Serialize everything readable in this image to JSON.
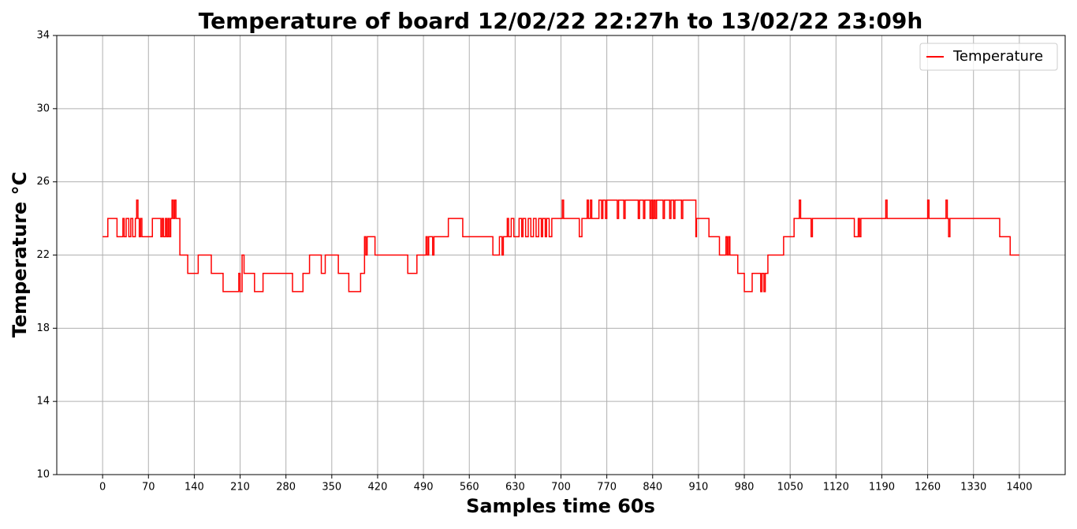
{
  "chart_data": {
    "type": "line",
    "line_shape": "step",
    "title": "Temperature of board 12/02/22 22:27h to 13/02/22 23:09h",
    "xlabel": "Samples time 60s",
    "ylabel": "Temperature °C",
    "label_color": "#1f77b4",
    "grid": true,
    "legend": "upper right",
    "xlim": [
      -70,
      1470
    ],
    "ylim": [
      10,
      34
    ],
    "xticks": [
      0,
      70,
      140,
      210,
      280,
      350,
      420,
      490,
      560,
      630,
      700,
      770,
      840,
      910,
      980,
      1050,
      1120,
      1190,
      1260,
      1330,
      1400
    ],
    "yticks": [
      10,
      14,
      18,
      22,
      26,
      30,
      34
    ],
    "series": [
      {
        "name": "Temperature",
        "color": "#ff0000",
        "x": [
          0,
          8,
          22,
          31,
          33,
          36,
          40,
          43,
          46,
          50,
          52,
          54,
          56,
          58,
          60,
          76,
          89,
          91,
          93,
          96,
          98,
          100,
          102,
          104,
          106,
          108,
          110,
          112,
          118,
          130,
          146,
          166,
          184,
          208,
          210,
          213,
          216,
          232,
          245,
          290,
          306,
          316,
          334,
          340,
          360,
          376,
          394,
          400,
          402,
          404,
          416,
          466,
          480,
          494,
          496,
          498,
          504,
          506,
          528,
          550,
          596,
          606,
          610,
          612,
          618,
          620,
          624,
          628,
          636,
          640,
          642,
          646,
          650,
          654,
          658,
          662,
          666,
          670,
          672,
          676,
          678,
          682,
          686,
          702,
          704,
          728,
          732,
          740,
          742,
          745,
          747,
          758,
          762,
          764,
          768,
          770,
          786,
          788,
          796,
          798,
          818,
          820,
          826,
          828,
          836,
          838,
          840,
          842,
          844,
          846,
          856,
          858,
          866,
          868,
          872,
          874,
          884,
          886,
          906,
          907,
          926,
          942,
          952,
          954,
          956,
          958,
          970,
          980,
          992,
          1005,
          1007,
          1010,
          1012,
          1016,
          1040,
          1056,
          1064,
          1066,
          1082,
          1084,
          1148,
          1154,
          1156,
          1158,
          1196,
          1198,
          1260,
          1262,
          1288,
          1290,
          1292,
          1294,
          1370,
          1386,
          1400
        ],
        "values": [
          23,
          24,
          23,
          24,
          23,
          24,
          23,
          24,
          23,
          24,
          25,
          24,
          23,
          24,
          23,
          24,
          23,
          24,
          23,
          24,
          23,
          24,
          23,
          24,
          25,
          24,
          25,
          24,
          22,
          21,
          22,
          21,
          20,
          21,
          20,
          22,
          21,
          20,
          21,
          20,
          21,
          22,
          21,
          22,
          21,
          20,
          21,
          23,
          22,
          23,
          22,
          21,
          22,
          23,
          22,
          23,
          22,
          23,
          24,
          23,
          22,
          23,
          22,
          23,
          24,
          23,
          24,
          23,
          24,
          23,
          24,
          23,
          24,
          23,
          24,
          23,
          24,
          23,
          24,
          23,
          24,
          23,
          24,
          25,
          24,
          23,
          24,
          25,
          24,
          25,
          24,
          25,
          24,
          25,
          24,
          25,
          24,
          25,
          24,
          25,
          24,
          25,
          24,
          25,
          24,
          25,
          24,
          25,
          24,
          25,
          24,
          25,
          24,
          25,
          24,
          25,
          24,
          25,
          23,
          24,
          23,
          22,
          23,
          22,
          23,
          22,
          21,
          20,
          21,
          20,
          21,
          20,
          21,
          22,
          23,
          24,
          25,
          24,
          23,
          24,
          23,
          24,
          23,
          24,
          25,
          24,
          25,
          24,
          25,
          24,
          23,
          24,
          23,
          22,
          22
        ]
      }
    ]
  }
}
